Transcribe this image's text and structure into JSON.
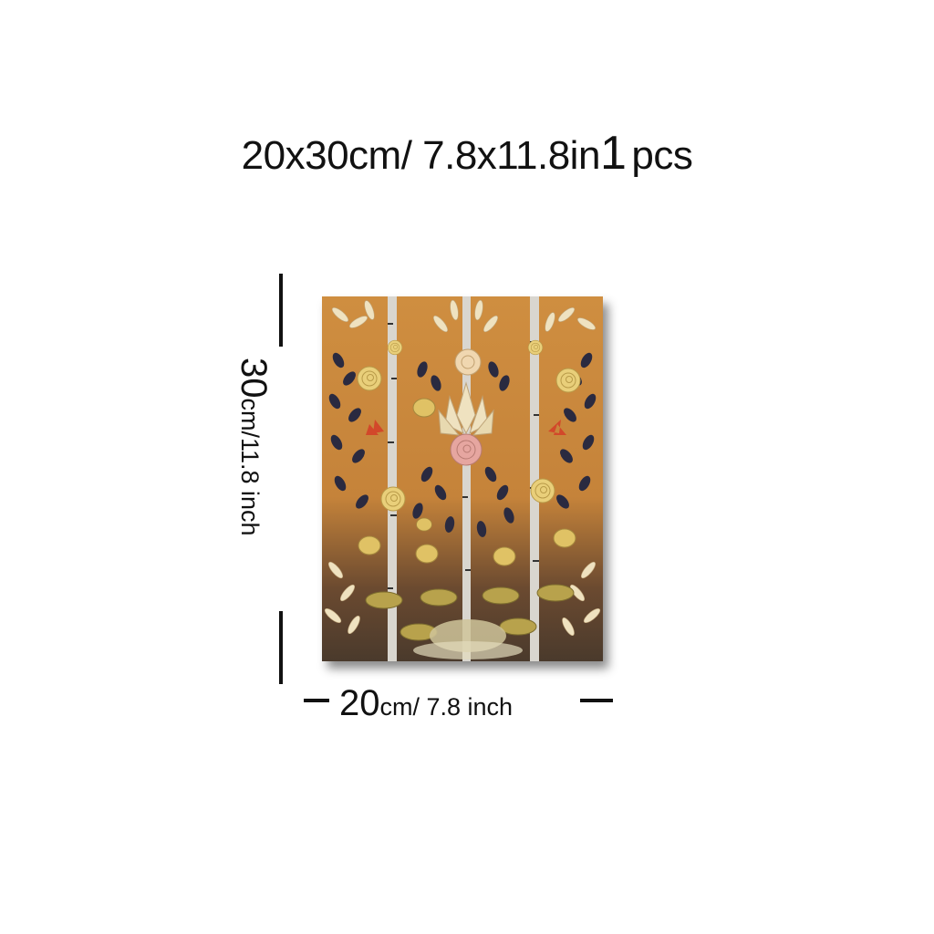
{
  "title": {
    "part1": "20x30cm/ 7.8x11.8in",
    "quantity": "1",
    "unit": "pcs"
  },
  "height_label": {
    "number": "30",
    "unit_text": "cm/11.8 inch"
  },
  "width_label": {
    "number": "20",
    "unit_text": "cm/ 7.8 inch"
  },
  "colors": {
    "background": "#ffffff",
    "canvas_base": "#c98a3c",
    "leaf_dark": "#2a2a40",
    "leaf_cream": "#efe2c0",
    "rose_yellow": "#e9cf7a",
    "rose_pink": "#e6a6a0",
    "accent_red": "#d2482a"
  }
}
